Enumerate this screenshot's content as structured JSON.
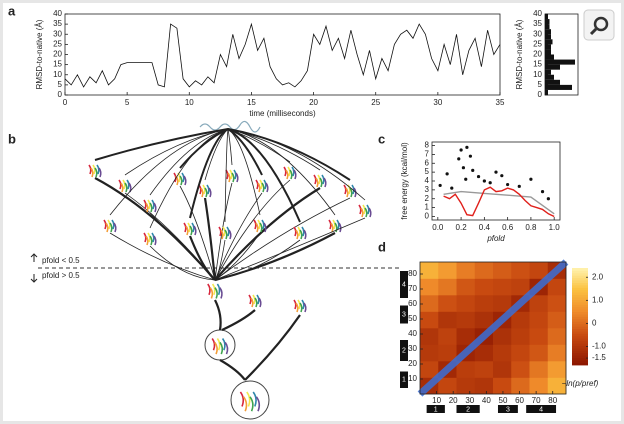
{
  "panel_labels": [
    "a",
    "b",
    "c",
    "d"
  ],
  "chart_data": [
    {
      "type": "line",
      "ylabel": "RMSD-to-native (Å)",
      "xlabel": "time (milliseconds)",
      "color": "#111111",
      "x": [
        0,
        0.5,
        1,
        1.5,
        2,
        2.5,
        3,
        3.5,
        4,
        4.5,
        5,
        5.5,
        6,
        6.5,
        7,
        7.5,
        8,
        8.5,
        9,
        9.5,
        10,
        10.5,
        11,
        11.5,
        12,
        12.5,
        13,
        13.5,
        14,
        14.5,
        15,
        15.5,
        16,
        16.5,
        17,
        17.5,
        18,
        18.5,
        19,
        19.5,
        20,
        20.5,
        21,
        21.5,
        22,
        22.5,
        23,
        23.5,
        24,
        24.5,
        25,
        25.5,
        26,
        26.5,
        27,
        27.5,
        28,
        28.5,
        29,
        29.5,
        30,
        30.5,
        31,
        31.5,
        32,
        32.5,
        33,
        33.5,
        34,
        34.5,
        35
      ],
      "values": [
        8,
        5,
        10,
        4,
        9,
        6,
        12,
        5,
        8,
        15,
        16,
        16,
        16,
        16,
        16,
        5,
        4,
        35,
        33,
        8,
        4,
        7,
        5,
        9,
        6,
        20,
        14,
        30,
        18,
        25,
        35,
        22,
        28,
        14,
        8,
        5,
        6,
        4,
        7,
        12,
        30,
        25,
        34,
        22,
        28,
        18,
        32,
        20,
        10,
        22,
        8,
        18,
        12,
        25,
        30,
        32,
        28,
        35,
        30,
        18,
        12,
        25,
        15,
        30,
        10,
        22,
        28,
        14,
        32,
        20,
        25
      ],
      "xlim": [
        0,
        35
      ],
      "xticks": [
        0,
        5,
        10,
        15,
        20,
        25,
        30,
        35
      ],
      "ylim": [
        0,
        40
      ],
      "yticks": [
        0,
        5,
        10,
        15,
        20,
        25,
        30,
        35,
        40
      ]
    },
    {
      "type": "histogram",
      "ylabel": "RMSD-to-native (Å)",
      "color": "#111111",
      "bins": [
        0,
        2.5,
        5,
        7.5,
        10,
        12.5,
        15,
        17.5,
        20,
        22.5,
        25,
        27.5,
        30,
        32.5,
        35,
        37.5,
        40
      ],
      "counts": [
        2,
        18,
        10,
        6,
        4,
        10,
        20,
        6,
        4,
        4,
        5,
        4,
        4,
        3,
        3,
        2
      ],
      "xlim": [
        0,
        22
      ],
      "ylim": [
        0,
        40
      ],
      "yticks": [
        0,
        5,
        10,
        15,
        20,
        25,
        30,
        35,
        40
      ]
    },
    {
      "type": "line",
      "ylabel": "free energy (kcal/mol)",
      "xlabel": "pfold",
      "series": [
        {
          "color": "#999999",
          "kind": "line",
          "x": [
            0.05,
            0.2,
            0.4,
            0.6,
            0.8,
            1.0
          ],
          "values": [
            2.5,
            2.8,
            2.6,
            2.4,
            2.2,
            0.3
          ]
        },
        {
          "color": "#111111",
          "kind": "scatter",
          "x": [
            0.02,
            0.08,
            0.12,
            0.18,
            0.2,
            0.22,
            0.25,
            0.24,
            0.28,
            0.3,
            0.35,
            0.4,
            0.45,
            0.5,
            0.55,
            0.6,
            0.7,
            0.8,
            0.9,
            0.95
          ],
          "values": [
            3.5,
            4.8,
            3.2,
            6.5,
            7.5,
            5.5,
            7.8,
            4.2,
            6.8,
            5.2,
            4.5,
            4.0,
            3.8,
            5.0,
            4.6,
            3.6,
            3.4,
            4.2,
            2.8,
            2.0
          ]
        },
        {
          "color": "#e0201b",
          "kind": "line",
          "x": [
            0.05,
            0.1,
            0.15,
            0.2,
            0.25,
            0.3,
            0.35,
            0.4,
            0.45,
            0.5,
            0.55,
            0.6,
            0.65,
            0.7,
            0.75,
            0.8,
            0.85,
            0.9,
            0.95,
            1.0
          ],
          "values": [
            2.3,
            2.0,
            2.5,
            1.5,
            0.2,
            0.1,
            1.5,
            3.0,
            3.3,
            2.8,
            2.9,
            3.2,
            3.0,
            2.5,
            1.8,
            1.2,
            1.0,
            0.8,
            0.3,
            0.0
          ]
        }
      ],
      "xlim": [
        -0.05,
        1.05
      ],
      "xticks": [
        {
          "value": 0,
          "label": "0.0"
        },
        0.2,
        0.4,
        0.6,
        0.8,
        {
          "value": 1,
          "label": "1.0"
        }
      ],
      "ylim": [
        -0.4,
        8.4
      ],
      "yticks": [
        0,
        1,
        2,
        3,
        4,
        5,
        6,
        7,
        8
      ]
    },
    {
      "type": "heatmap",
      "colorbar_label": "−ln(p/pref)",
      "matrix": [
        [
          -1.2,
          -0.6,
          -0.9,
          -1.0,
          -0.5,
          0.0,
          0.5,
          1.2
        ],
        [
          -0.6,
          -1.3,
          -0.8,
          -0.7,
          -1.0,
          -0.4,
          0.2,
          0.8
        ],
        [
          -0.9,
          -0.8,
          -1.4,
          -1.2,
          -0.9,
          -0.6,
          -0.3,
          0.3
        ],
        [
          -1.0,
          -0.7,
          -1.2,
          -1.5,
          -1.1,
          -0.8,
          -0.5,
          0.0
        ],
        [
          -0.5,
          -1.0,
          -0.9,
          -1.1,
          -1.4,
          -0.9,
          -0.6,
          -0.2
        ],
        [
          0.0,
          -0.4,
          -0.6,
          -0.8,
          -0.9,
          -1.3,
          -0.7,
          -0.4
        ],
        [
          0.5,
          0.2,
          -0.3,
          -0.5,
          -0.6,
          -0.7,
          -1.4,
          -0.6
        ],
        [
          1.2,
          0.8,
          0.3,
          0.0,
          -0.2,
          -0.4,
          -0.6,
          -1.2
        ]
      ],
      "xlim": [
        0,
        88
      ],
      "ylim": [
        0,
        88
      ],
      "xticks": [
        10,
        20,
        30,
        40,
        50,
        60,
        70,
        80
      ],
      "yticks": [
        10,
        20,
        30,
        40,
        50,
        60,
        70,
        80
      ],
      "clim": [
        -1.8,
        2.4
      ],
      "cticks": [
        {
          "value": 2,
          "label": "2.0"
        },
        {
          "value": 1,
          "label": "1.0"
        },
        0,
        {
          "value": -1,
          "label": "-1.0"
        },
        -1.5
      ],
      "segments": [
        {
          "label": "1",
          "range": [
            4,
            15
          ]
        },
        {
          "label": "2",
          "range": [
            22,
            36
          ]
        },
        {
          "label": "3",
          "range": [
            47,
            59
          ]
        },
        {
          "label": "4",
          "range": [
            64,
            82
          ]
        }
      ]
    }
  ],
  "diagram": {
    "threshold_above": "pfold < 0.5",
    "threshold_below": "pfold > 0.5"
  }
}
